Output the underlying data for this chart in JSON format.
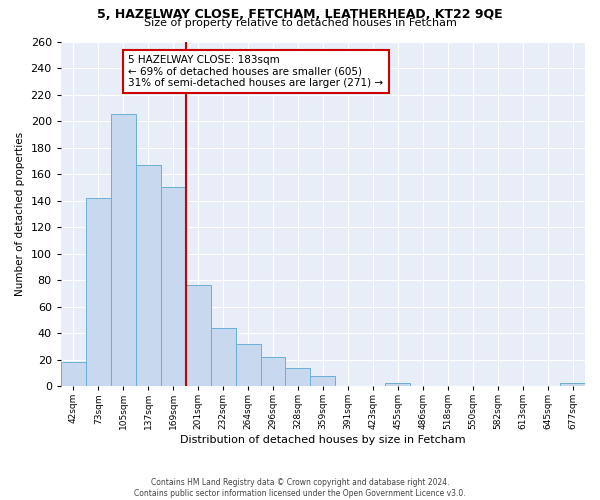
{
  "title1": "5, HAZELWAY CLOSE, FETCHAM, LEATHERHEAD, KT22 9QE",
  "title2": "Size of property relative to detached houses in Fetcham",
  "xlabel": "Distribution of detached houses by size in Fetcham",
  "ylabel": "Number of detached properties",
  "bin_labels": [
    "42sqm",
    "73sqm",
    "105sqm",
    "137sqm",
    "169sqm",
    "201sqm",
    "232sqm",
    "264sqm",
    "296sqm",
    "328sqm",
    "359sqm",
    "391sqm",
    "423sqm",
    "455sqm",
    "486sqm",
    "518sqm",
    "550sqm",
    "582sqm",
    "613sqm",
    "645sqm",
    "677sqm"
  ],
  "bar_heights": [
    18,
    142,
    205,
    167,
    150,
    76,
    44,
    32,
    22,
    14,
    8,
    0,
    0,
    2,
    0,
    0,
    0,
    0,
    0,
    0,
    2
  ],
  "bar_color": "#c8d9ef",
  "bar_edge_color": "#6baed6",
  "vline_color": "#cc0000",
  "annotation_text": "5 HAZELWAY CLOSE: 183sqm\n← 69% of detached houses are smaller (605)\n31% of semi-detached houses are larger (271) →",
  "annotation_box_color": "#ffffff",
  "annotation_box_edge": "#cc0000",
  "ylim": [
    0,
    260
  ],
  "yticks": [
    0,
    20,
    40,
    60,
    80,
    100,
    120,
    140,
    160,
    180,
    200,
    220,
    240,
    260
  ],
  "footer": "Contains HM Land Registry data © Crown copyright and database right 2024.\nContains public sector information licensed under the Open Government Licence v3.0.",
  "bg_color": "#ffffff",
  "plot_bg_color": "#e8eef8",
  "grid_color": "#ffffff"
}
